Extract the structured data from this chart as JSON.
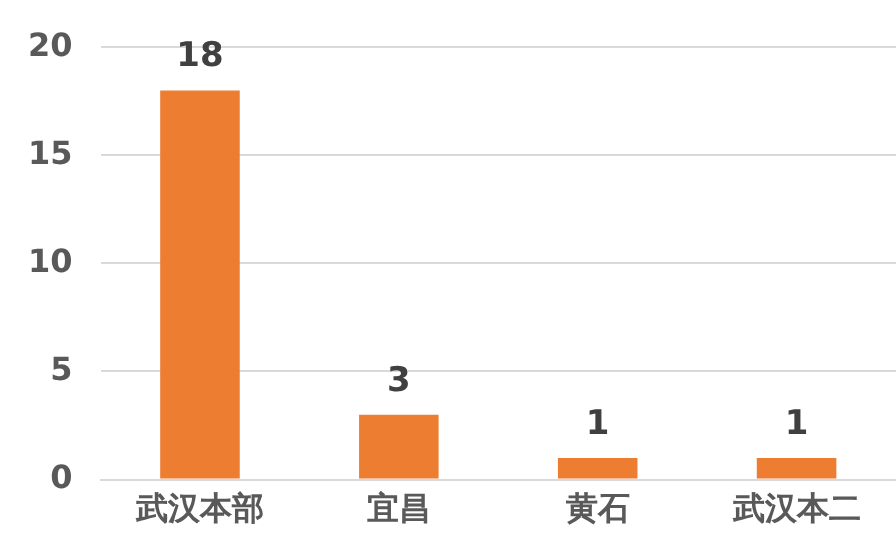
{
  "chart_data": {
    "type": "bar",
    "categories": [
      "武汉本部",
      "宜昌",
      "黄石",
      "武汉本二"
    ],
    "values": [
      18,
      3,
      1,
      1
    ],
    "color": "#ed7d31",
    "ylim": [
      0,
      20
    ],
    "yticks": [
      0,
      5,
      10,
      15,
      20
    ],
    "grid": "y",
    "data_labels": true,
    "legend": false
  }
}
